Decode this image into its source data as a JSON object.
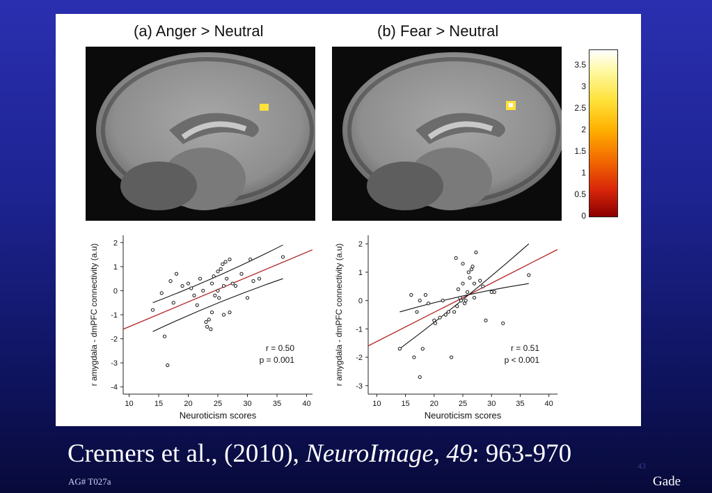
{
  "figure": {
    "panel_a_title": "(a) Anger > Neutral",
    "panel_b_title": "(b) Fear > Neutral",
    "colorbar": {
      "ticks": [
        "3.5",
        "3",
        "2.5",
        "2",
        "1.5",
        "1",
        "0.5",
        "0"
      ],
      "colors": [
        "#ffffff",
        "#ffe23a",
        "#f26a00",
        "#8b0000"
      ]
    }
  },
  "chart_data": [
    {
      "type": "scatter",
      "title": "",
      "xlabel": "Neuroticism scores",
      "ylabel": "r amygdala - dmPFC connectivity (a.u)",
      "xlim": [
        9,
        41
      ],
      "ylim": [
        -4.3,
        2.3
      ],
      "xticks": [
        "10",
        "15",
        "20",
        "25",
        "30",
        "35",
        "40"
      ],
      "yticks": [
        "2",
        "1",
        "0",
        "-1",
        "-2",
        "-3",
        "-4"
      ],
      "stats": [
        "r  = 0.50",
        "p = 0.001"
      ],
      "fit_line": {
        "x": [
          9,
          41
        ],
        "y": [
          -1.6,
          1.7
        ],
        "color": "#b22222"
      },
      "ci_upper": {
        "x": [
          14,
          36
        ],
        "y": [
          -0.5,
          1.9
        ]
      },
      "ci_lower": {
        "x": [
          14,
          36
        ],
        "y": [
          -1.7,
          0.5
        ]
      },
      "points": [
        [
          14,
          -0.8
        ],
        [
          15.5,
          -0.1
        ],
        [
          16,
          -1.9
        ],
        [
          16.5,
          -3.1
        ],
        [
          17,
          0.4
        ],
        [
          17.5,
          -0.5
        ],
        [
          18,
          0.7
        ],
        [
          19,
          0.2
        ],
        [
          20,
          0.3
        ],
        [
          20.5,
          0.1
        ],
        [
          21,
          -0.2
        ],
        [
          21.5,
          -0.6
        ],
        [
          22,
          0.5
        ],
        [
          22.5,
          0.0
        ],
        [
          23,
          -1.3
        ],
        [
          23.2,
          -1.5
        ],
        [
          23.5,
          -1.2
        ],
        [
          23.8,
          -1.6
        ],
        [
          24,
          -0.9
        ],
        [
          24,
          0.3
        ],
        [
          24.3,
          0.6
        ],
        [
          24.5,
          -0.2
        ],
        [
          25,
          0.0
        ],
        [
          25,
          0.8
        ],
        [
          25.2,
          -0.3
        ],
        [
          25.5,
          0.9
        ],
        [
          25.8,
          1.1
        ],
        [
          26,
          0.2
        ],
        [
          26,
          -1.0
        ],
        [
          26.3,
          1.2
        ],
        [
          26.5,
          0.5
        ],
        [
          27,
          1.3
        ],
        [
          27,
          -0.9
        ],
        [
          27.5,
          0.3
        ],
        [
          28,
          0.2
        ],
        [
          29,
          0.7
        ],
        [
          30,
          -0.3
        ],
        [
          30.5,
          1.3
        ],
        [
          31,
          0.4
        ],
        [
          32,
          0.5
        ],
        [
          36,
          1.4
        ]
      ]
    },
    {
      "type": "scatter",
      "title": "",
      "xlabel": "Neuroticism scores",
      "ylabel": "r amygdala - dmPFC connectivity (a.u)",
      "xlim": [
        8.5,
        41.5
      ],
      "ylim": [
        -3.3,
        2.3
      ],
      "xticks": [
        "10",
        "15",
        "20",
        "25",
        "30",
        "35",
        "40"
      ],
      "yticks": [
        "2",
        "1",
        "0",
        "-1",
        "-2",
        "-3"
      ],
      "stats": [
        "r  = 0.51",
        "p < 0.001"
      ],
      "fit_line": {
        "x": [
          8.5,
          41.5
        ],
        "y": [
          -1.6,
          1.8
        ],
        "color": "#b22222"
      },
      "ci_upper": {
        "x": [
          14,
          36.5
        ],
        "y": [
          -1.7,
          2.0
        ]
      },
      "ci_lower": {
        "x": [
          14,
          36.5
        ],
        "y": [
          -0.4,
          0.6
        ]
      },
      "points": [
        [
          14,
          -1.7
        ],
        [
          16,
          0.2
        ],
        [
          16.5,
          -2.0
        ],
        [
          17,
          -0.4
        ],
        [
          17.5,
          0.0
        ],
        [
          17.5,
          -2.7
        ],
        [
          18,
          -1.7
        ],
        [
          18.5,
          0.2
        ],
        [
          19,
          -0.1
        ],
        [
          20,
          -0.7
        ],
        [
          20.2,
          -0.8
        ],
        [
          21,
          -0.6
        ],
        [
          21.5,
          0.0
        ],
        [
          22,
          -0.5
        ],
        [
          22.5,
          -0.4
        ],
        [
          23,
          -2.0
        ],
        [
          23.5,
          -0.4
        ],
        [
          23.8,
          1.5
        ],
        [
          24,
          -0.2
        ],
        [
          24.2,
          0.4
        ],
        [
          24.5,
          0.1
        ],
        [
          24.7,
          0.0
        ],
        [
          25,
          1.3
        ],
        [
          25,
          0.6
        ],
        [
          25.3,
          -0.1
        ],
        [
          25.5,
          0.0
        ],
        [
          25.8,
          0.3
        ],
        [
          26,
          1.0
        ],
        [
          26.2,
          0.8
        ],
        [
          26.5,
          1.1
        ],
        [
          26.7,
          1.2
        ],
        [
          27,
          0.6
        ],
        [
          27,
          0.1
        ],
        [
          27.3,
          1.7
        ],
        [
          28,
          0.7
        ],
        [
          28.5,
          0.5
        ],
        [
          29,
          -0.7
        ],
        [
          30,
          0.3
        ],
        [
          30.5,
          0.3
        ],
        [
          32,
          -0.8
        ],
        [
          36.5,
          0.9
        ]
      ]
    }
  ],
  "footer": {
    "citation_prefix": "Cremers et al., (2010), ",
    "citation_journal": "NeuroImage, 49",
    "citation_pages": ": 963-970",
    "page_number": "43",
    "slide_id": "AG# T027a",
    "author": "Gade"
  }
}
